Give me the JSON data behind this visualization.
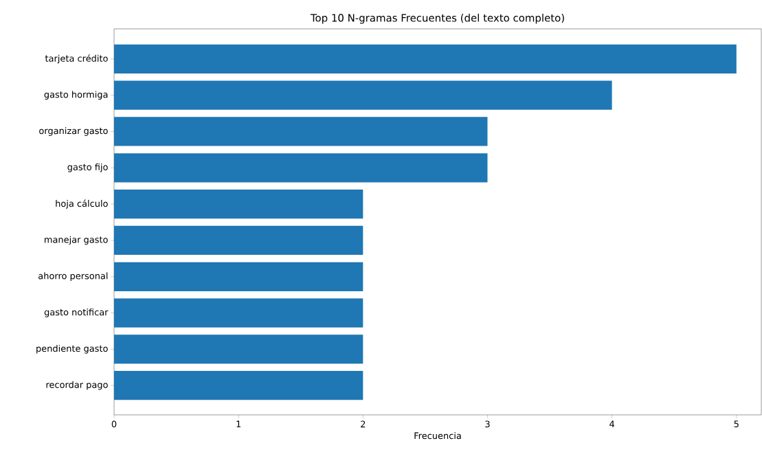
{
  "chart_data": {
    "type": "bar",
    "orientation": "horizontal",
    "title": "Top 10 N-gramas Frecuentes (del texto completo)",
    "xlabel": "Frecuencia",
    "categories": [
      "tarjeta crédito",
      "gasto hormiga",
      "organizar gasto",
      "gasto fijo",
      "hoja cálculo",
      "manejar gasto",
      "ahorro personal",
      "gasto notificar",
      "pendiente gasto",
      "recordar pago"
    ],
    "values": [
      5,
      4,
      3,
      3,
      2,
      2,
      2,
      2,
      2,
      2
    ],
    "color": "#1f77b4",
    "xlim": [
      0,
      5.2
    ],
    "xticks": [
      0,
      1,
      2,
      3,
      4,
      5
    ],
    "grid": false
  }
}
